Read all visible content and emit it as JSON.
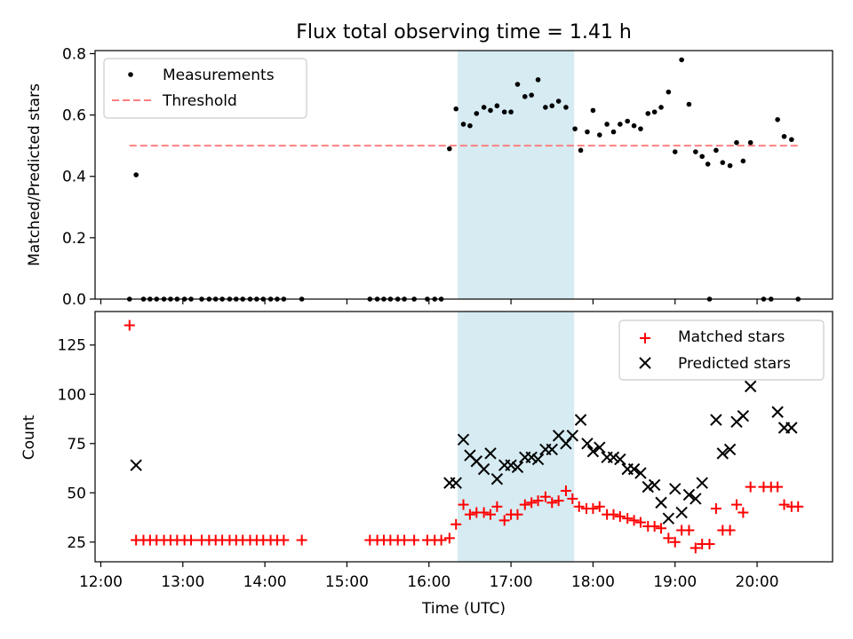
{
  "figure": {
    "title": "Flux total observing time = 1.41 h"
  },
  "chart_data": [
    {
      "type": "scatter",
      "title": "Flux total observing time = 1.41 h",
      "xlabel": "",
      "ylabel": "Matched/Predicted stars",
      "xlim": [
        11.93,
        20.92
      ],
      "ylim": [
        0,
        0.81
      ],
      "yticks": [
        0.0,
        0.2,
        0.4,
        0.6,
        0.8
      ],
      "ytick_labels": [
        "0.0",
        "0.2",
        "0.4",
        "0.6",
        "0.8"
      ],
      "grid": false,
      "legend": "upper left",
      "shaded_span": [
        16.35,
        17.77
      ],
      "threshold": {
        "name": "Threshold",
        "value": 0.5,
        "x": [
          12.35,
          20.52
        ],
        "color": "#ff7f7f"
      },
      "series": [
        {
          "name": "Measurements",
          "color": "#000000",
          "points": [
            [
              12.35,
              0.0
            ],
            [
              12.43,
              0.405
            ],
            [
              12.52,
              0.0
            ],
            [
              12.6,
              0.0
            ],
            [
              12.68,
              0.0
            ],
            [
              12.77,
              0.0
            ],
            [
              12.85,
              0.0
            ],
            [
              12.93,
              0.0
            ],
            [
              13.02,
              0.0
            ],
            [
              13.1,
              0.0
            ],
            [
              13.23,
              0.0
            ],
            [
              13.32,
              0.0
            ],
            [
              13.4,
              0.0
            ],
            [
              13.48,
              0.0
            ],
            [
              13.57,
              0.0
            ],
            [
              13.65,
              0.0
            ],
            [
              13.73,
              0.0
            ],
            [
              13.82,
              0.0
            ],
            [
              13.9,
              0.0
            ],
            [
              13.98,
              0.0
            ],
            [
              14.07,
              0.0
            ],
            [
              14.15,
              0.0
            ],
            [
              14.23,
              0.0
            ],
            [
              14.45,
              0.0
            ],
            [
              15.28,
              0.0
            ],
            [
              15.37,
              0.0
            ],
            [
              15.45,
              0.0
            ],
            [
              15.53,
              0.0
            ],
            [
              15.62,
              0.0
            ],
            [
              15.7,
              0.0
            ],
            [
              15.82,
              0.0
            ],
            [
              15.98,
              0.0
            ],
            [
              16.07,
              0.0
            ],
            [
              16.15,
              0.0
            ],
            [
              16.25,
              0.49
            ],
            [
              16.33,
              0.62
            ],
            [
              16.42,
              0.57
            ],
            [
              16.5,
              0.565
            ],
            [
              16.58,
              0.605
            ],
            [
              16.67,
              0.625
            ],
            [
              16.75,
              0.615
            ],
            [
              16.83,
              0.63
            ],
            [
              16.92,
              0.61
            ],
            [
              17.0,
              0.61
            ],
            [
              17.08,
              0.7
            ],
            [
              17.17,
              0.66
            ],
            [
              17.25,
              0.665
            ],
            [
              17.33,
              0.715
            ],
            [
              17.42,
              0.625
            ],
            [
              17.5,
              0.63
            ],
            [
              17.58,
              0.645
            ],
            [
              17.67,
              0.625
            ],
            [
              17.78,
              0.555
            ],
            [
              17.85,
              0.485
            ],
            [
              17.93,
              0.545
            ],
            [
              18.0,
              0.615
            ],
            [
              18.08,
              0.535
            ],
            [
              18.17,
              0.57
            ],
            [
              18.25,
              0.545
            ],
            [
              18.33,
              0.57
            ],
            [
              18.42,
              0.58
            ],
            [
              18.5,
              0.565
            ],
            [
              18.58,
              0.555
            ],
            [
              18.67,
              0.605
            ],
            [
              18.75,
              0.61
            ],
            [
              18.83,
              0.625
            ],
            [
              18.92,
              0.675
            ],
            [
              19.0,
              0.48
            ],
            [
              19.08,
              0.78
            ],
            [
              19.17,
              0.635
            ],
            [
              19.25,
              0.48
            ],
            [
              19.33,
              0.465
            ],
            [
              19.4,
              0.44
            ],
            [
              19.42,
              0.0
            ],
            [
              19.5,
              0.485
            ],
            [
              19.58,
              0.445
            ],
            [
              19.67,
              0.435
            ],
            [
              19.75,
              0.51
            ],
            [
              19.83,
              0.45
            ],
            [
              19.92,
              0.51
            ],
            [
              20.08,
              0.0
            ],
            [
              20.17,
              0.0
            ],
            [
              20.25,
              0.585
            ],
            [
              20.33,
              0.53
            ],
            [
              20.42,
              0.52
            ],
            [
              20.5,
              0.0
            ]
          ]
        }
      ]
    },
    {
      "type": "scatter",
      "title": "",
      "xlabel": "Time (UTC)",
      "ylabel": "Count",
      "xlim": [
        11.93,
        20.92
      ],
      "ylim": [
        15,
        142
      ],
      "yticks": [
        25,
        50,
        75,
        100,
        125
      ],
      "ytick_labels": [
        "25",
        "50",
        "75",
        "100",
        "125"
      ],
      "xticks": [
        12,
        13,
        14,
        15,
        16,
        17,
        18,
        19,
        20
      ],
      "xtick_labels": [
        "12:00",
        "13:00",
        "14:00",
        "15:00",
        "16:00",
        "17:00",
        "18:00",
        "19:00",
        "20:00"
      ],
      "grid": false,
      "legend": "upper right",
      "shaded_span": [
        16.35,
        17.77
      ],
      "series": [
        {
          "name": "Matched stars",
          "color": "#ff0000",
          "marker": "plus",
          "points": [
            [
              12.35,
              135
            ],
            [
              12.43,
              26
            ],
            [
              12.52,
              26
            ],
            [
              12.6,
              26
            ],
            [
              12.68,
              26
            ],
            [
              12.77,
              26
            ],
            [
              12.85,
              26
            ],
            [
              12.93,
              26
            ],
            [
              13.02,
              26
            ],
            [
              13.1,
              26
            ],
            [
              13.23,
              26
            ],
            [
              13.32,
              26
            ],
            [
              13.4,
              26
            ],
            [
              13.48,
              26
            ],
            [
              13.57,
              26
            ],
            [
              13.65,
              26
            ],
            [
              13.73,
              26
            ],
            [
              13.82,
              26
            ],
            [
              13.9,
              26
            ],
            [
              13.98,
              26
            ],
            [
              14.07,
              26
            ],
            [
              14.15,
              26
            ],
            [
              14.23,
              26
            ],
            [
              14.45,
              26
            ],
            [
              15.28,
              26
            ],
            [
              15.37,
              26
            ],
            [
              15.45,
              26
            ],
            [
              15.53,
              26
            ],
            [
              15.62,
              26
            ],
            [
              15.7,
              26
            ],
            [
              15.82,
              26
            ],
            [
              15.98,
              26
            ],
            [
              16.07,
              26
            ],
            [
              16.15,
              26
            ],
            [
              16.25,
              27
            ],
            [
              16.33,
              34
            ],
            [
              16.42,
              44
            ],
            [
              16.5,
              39
            ],
            [
              16.58,
              40
            ],
            [
              16.67,
              40
            ],
            [
              16.75,
              39
            ],
            [
              16.83,
              43
            ],
            [
              16.92,
              36
            ],
            [
              17.0,
              39
            ],
            [
              17.08,
              39
            ],
            [
              17.17,
              44
            ],
            [
              17.25,
              45
            ],
            [
              17.33,
              46
            ],
            [
              17.42,
              48
            ],
            [
              17.5,
              45
            ],
            [
              17.58,
              46
            ],
            [
              17.67,
              51
            ],
            [
              17.75,
              47
            ],
            [
              17.83,
              43
            ],
            [
              17.92,
              42
            ],
            [
              18.0,
              42
            ],
            [
              18.08,
              43
            ],
            [
              18.17,
              39
            ],
            [
              18.25,
              39
            ],
            [
              18.33,
              38
            ],
            [
              18.42,
              37
            ],
            [
              18.5,
              36
            ],
            [
              18.58,
              35
            ],
            [
              18.67,
              33
            ],
            [
              18.75,
              33
            ],
            [
              18.83,
              32
            ],
            [
              18.92,
              27
            ],
            [
              19.0,
              25
            ],
            [
              19.08,
              31
            ],
            [
              19.17,
              31
            ],
            [
              19.25,
              22
            ],
            [
              19.33,
              24
            ],
            [
              19.42,
              24
            ],
            [
              19.5,
              42
            ],
            [
              19.58,
              31
            ],
            [
              19.67,
              31
            ],
            [
              19.75,
              44
            ],
            [
              19.83,
              40
            ],
            [
              19.92,
              53
            ],
            [
              20.08,
              53
            ],
            [
              20.17,
              53
            ],
            [
              20.25,
              53
            ],
            [
              20.33,
              44
            ],
            [
              20.42,
              43
            ],
            [
              20.5,
              43
            ]
          ]
        },
        {
          "name": "Predicted stars",
          "color": "#000000",
          "marker": "x",
          "points": [
            [
              12.43,
              64
            ],
            [
              16.25,
              55
            ],
            [
              16.33,
              55
            ],
            [
              16.42,
              77
            ],
            [
              16.5,
              69
            ],
            [
              16.58,
              66
            ],
            [
              16.67,
              62
            ],
            [
              16.75,
              70
            ],
            [
              16.83,
              57
            ],
            [
              16.92,
              64
            ],
            [
              17.0,
              64
            ],
            [
              17.08,
              63
            ],
            [
              17.17,
              68
            ],
            [
              17.25,
              68
            ],
            [
              17.33,
              67
            ],
            [
              17.42,
              72
            ],
            [
              17.5,
              72
            ],
            [
              17.58,
              79
            ],
            [
              17.67,
              75
            ],
            [
              17.75,
              79
            ],
            [
              17.85,
              87
            ],
            [
              17.93,
              75
            ],
            [
              18.0,
              71
            ],
            [
              18.08,
              73
            ],
            [
              18.17,
              68
            ],
            [
              18.25,
              68
            ],
            [
              18.33,
              67
            ],
            [
              18.42,
              62
            ],
            [
              18.5,
              62
            ],
            [
              18.58,
              60
            ],
            [
              18.67,
              53
            ],
            [
              18.75,
              54
            ],
            [
              18.83,
              45
            ],
            [
              18.92,
              37
            ],
            [
              19.0,
              52
            ],
            [
              19.08,
              40
            ],
            [
              19.17,
              49
            ],
            [
              19.25,
              47
            ],
            [
              19.33,
              55
            ],
            [
              19.5,
              87
            ],
            [
              19.58,
              70
            ],
            [
              19.67,
              72
            ],
            [
              19.75,
              86
            ],
            [
              19.83,
              89
            ],
            [
              19.92,
              104
            ],
            [
              20.25,
              91
            ],
            [
              20.33,
              83
            ],
            [
              20.42,
              83
            ]
          ]
        }
      ]
    }
  ]
}
